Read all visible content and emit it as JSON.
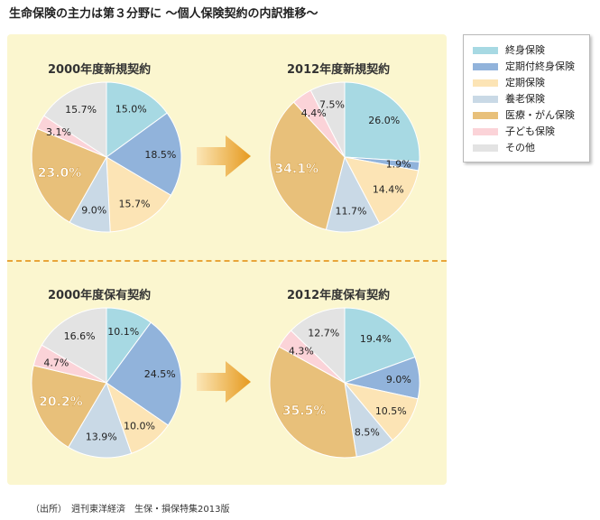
{
  "title": "生命保険の主力は第３分野に 〜個人保険契約の内訳推移〜",
  "categories": [
    "終身保険",
    "定期付終身保険",
    "定期保険",
    "養老保険",
    "医療・がん保険",
    "子ども保険",
    "その他"
  ],
  "colors": [
    "#a7d9e3",
    "#91b3db",
    "#fce4b5",
    "#c9d9e6",
    "#e8c07a",
    "#fbd3d8",
    "#e3e3e3"
  ],
  "legend": {
    "items": [
      "終身保険",
      "定期付終身保険",
      "定期保険",
      "養老保険",
      "医療・がん保険",
      "子ども保険",
      "その他"
    ]
  },
  "chart_data": [
    {
      "type": "pie",
      "title": "2000年度新規契約",
      "values": [
        15.0,
        18.5,
        15.7,
        9.0,
        23.0,
        3.1,
        15.7
      ],
      "labels": [
        "15.0%",
        "18.5%",
        "15.7%",
        "9.0%",
        "23.0%",
        "3.1%",
        "15.7%"
      ]
    },
    {
      "type": "pie",
      "title": "2012年度新規契約",
      "values": [
        26.0,
        1.9,
        14.4,
        11.7,
        34.1,
        4.4,
        7.5
      ],
      "labels": [
        "26.0%",
        "1.9%",
        "14.4%",
        "11.7%",
        "34.1%",
        "4.4%",
        "7.5%"
      ]
    },
    {
      "type": "pie",
      "title": "2000年度保有契約",
      "values": [
        10.1,
        24.5,
        10.0,
        13.9,
        20.2,
        4.7,
        16.6
      ],
      "labels": [
        "10.1%",
        "24.5%",
        "10.0%",
        "13.9%",
        "20.2%",
        "4.7%",
        "16.6%"
      ]
    },
    {
      "type": "pie",
      "title": "2012年度保有契約",
      "values": [
        19.4,
        9.0,
        10.5,
        8.5,
        35.5,
        4.3,
        12.7
      ],
      "labels": [
        "19.4%",
        "9.0%",
        "10.5%",
        "8.5%",
        "35.5%",
        "4.3%",
        "12.7%"
      ]
    }
  ],
  "source": "（出所）　週刊東洋経済　生保・損保特集2013版"
}
